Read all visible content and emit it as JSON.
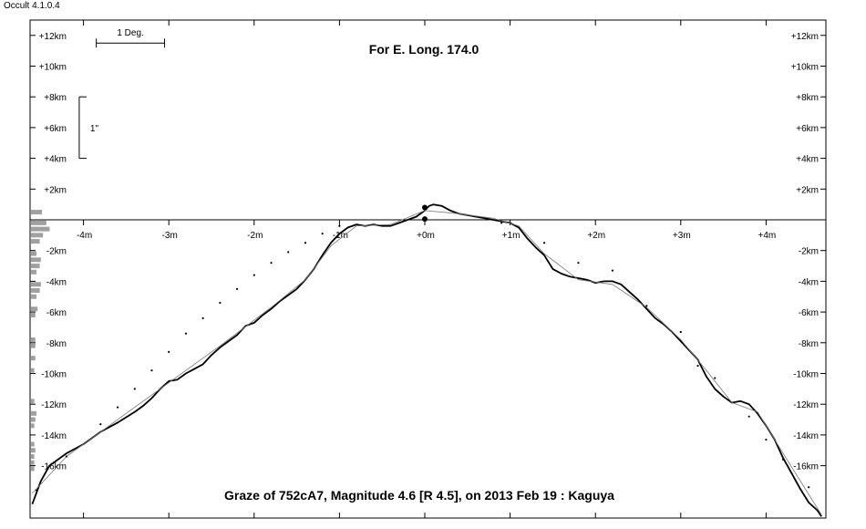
{
  "window": {
    "app_title": "Occult 4.1.0.4"
  },
  "chart_data": {
    "type": "line",
    "title": "Graze of  752cA7,  Magnitude 4.6 [R 4.5],  on 2013 Feb 19  :  Kaguya",
    "subtitle": "For E. Long. 174.0",
    "x_unit": "m",
    "y_unit": "km",
    "xlim": [
      -4.65,
      4.7
    ],
    "ylim": [
      -19.5,
      12.9
    ],
    "x_ticks": [
      -4,
      -3,
      -2,
      -1,
      0,
      1,
      2,
      3,
      4
    ],
    "x_tick_labels": [
      "-4m",
      "-3m",
      "-2m",
      "-1m",
      "+0m",
      "+1m",
      "+2m",
      "+3m",
      "+4m"
    ],
    "y_ticks": [
      12,
      10,
      8,
      6,
      4,
      2,
      -2,
      -4,
      -6,
      -8,
      -10,
      -12,
      -14,
      -16
    ],
    "y_tick_labels": [
      "+12km",
      "+10km",
      "+8km",
      "+6km",
      "+4km",
      "+2km",
      "-2km",
      "-4km",
      "-6km",
      "-8km",
      "-10km",
      "-12km",
      "-14km",
      "-16km"
    ],
    "scale_bar_deg": {
      "label": "1 Deg.",
      "x": [
        -3.85,
        -3.05
      ],
      "y": 11.5
    },
    "scale_bar_arcsec": {
      "label": "1\"",
      "x": -4.05,
      "y": [
        4,
        8
      ]
    },
    "series": [
      {
        "style": "thick",
        "color": "#000000",
        "points": [
          [
            -4.6,
            -18.5
          ],
          [
            -4.5,
            -17.0
          ],
          [
            -4.4,
            -16.0
          ],
          [
            -4.2,
            -15.2
          ],
          [
            -4.0,
            -14.6
          ],
          [
            -3.8,
            -13.8
          ],
          [
            -3.6,
            -13.2
          ],
          [
            -3.4,
            -12.5
          ],
          [
            -3.3,
            -12.1
          ],
          [
            -3.2,
            -11.6
          ],
          [
            -3.1,
            -11.0
          ],
          [
            -3.0,
            -10.5
          ],
          [
            -2.9,
            -10.4
          ],
          [
            -2.8,
            -10.0
          ],
          [
            -2.7,
            -9.7
          ],
          [
            -2.6,
            -9.4
          ],
          [
            -2.5,
            -8.8
          ],
          [
            -2.4,
            -8.3
          ],
          [
            -2.3,
            -7.9
          ],
          [
            -2.2,
            -7.5
          ],
          [
            -2.1,
            -6.9
          ],
          [
            -2.0,
            -6.7
          ],
          [
            -1.9,
            -6.2
          ],
          [
            -1.8,
            -5.8
          ],
          [
            -1.7,
            -5.3
          ],
          [
            -1.6,
            -4.9
          ],
          [
            -1.5,
            -4.5
          ],
          [
            -1.4,
            -3.9
          ],
          [
            -1.3,
            -3.2
          ],
          [
            -1.2,
            -2.3
          ],
          [
            -1.1,
            -1.5
          ],
          [
            -1.0,
            -0.9
          ],
          [
            -0.9,
            -0.5
          ],
          [
            -0.8,
            -0.3
          ],
          [
            -0.7,
            -0.4
          ],
          [
            -0.6,
            -0.3
          ],
          [
            -0.5,
            -0.4
          ],
          [
            -0.4,
            -0.4
          ],
          [
            -0.3,
            -0.2
          ],
          [
            -0.2,
            0.0
          ],
          [
            -0.1,
            0.2
          ],
          [
            0.0,
            0.6
          ],
          [
            0.05,
            0.9
          ],
          [
            0.1,
            1.0
          ],
          [
            0.2,
            0.9
          ],
          [
            0.3,
            0.6
          ],
          [
            0.4,
            0.4
          ],
          [
            0.5,
            0.3
          ],
          [
            0.6,
            0.2
          ],
          [
            0.7,
            0.1
          ],
          [
            0.8,
            0.0
          ],
          [
            0.9,
            -0.1
          ],
          [
            1.0,
            -0.2
          ],
          [
            1.1,
            -0.5
          ],
          [
            1.2,
            -1.2
          ],
          [
            1.3,
            -1.8
          ],
          [
            1.4,
            -2.3
          ],
          [
            1.5,
            -3.2
          ],
          [
            1.6,
            -3.5
          ],
          [
            1.7,
            -3.7
          ],
          [
            1.8,
            -3.8
          ],
          [
            1.9,
            -3.9
          ],
          [
            2.0,
            -4.1
          ],
          [
            2.1,
            -4.0
          ],
          [
            2.2,
            -4.0
          ],
          [
            2.3,
            -4.2
          ],
          [
            2.4,
            -4.7
          ],
          [
            2.5,
            -5.2
          ],
          [
            2.6,
            -5.8
          ],
          [
            2.7,
            -6.4
          ],
          [
            2.8,
            -6.8
          ],
          [
            2.9,
            -7.3
          ],
          [
            3.0,
            -7.9
          ],
          [
            3.1,
            -8.5
          ],
          [
            3.2,
            -9.1
          ],
          [
            3.3,
            -10.2
          ],
          [
            3.4,
            -11.0
          ],
          [
            3.5,
            -11.5
          ],
          [
            3.6,
            -11.9
          ],
          [
            3.7,
            -11.8
          ],
          [
            3.8,
            -12.0
          ],
          [
            3.9,
            -12.6
          ],
          [
            4.0,
            -13.4
          ],
          [
            4.1,
            -14.3
          ],
          [
            4.2,
            -15.5
          ],
          [
            4.3,
            -16.5
          ],
          [
            4.4,
            -17.5
          ],
          [
            4.5,
            -18.4
          ],
          [
            4.6,
            -18.9
          ],
          [
            4.65,
            -19.3
          ]
        ]
      },
      {
        "style": "thin",
        "color": "#777777",
        "points": [
          [
            -4.6,
            -17.8
          ],
          [
            -4.2,
            -15.4
          ],
          [
            -3.6,
            -13.0
          ],
          [
            -3.0,
            -10.6
          ],
          [
            -2.4,
            -8.2
          ],
          [
            -1.8,
            -5.7
          ],
          [
            -1.4,
            -3.9
          ],
          [
            -1.1,
            -1.7
          ],
          [
            -0.8,
            -0.4
          ],
          [
            -0.4,
            -0.3
          ],
          [
            0.0,
            0.6
          ],
          [
            0.4,
            0.4
          ],
          [
            0.8,
            0.1
          ],
          [
            1.1,
            -0.4
          ],
          [
            1.4,
            -2.2
          ],
          [
            1.8,
            -3.9
          ],
          [
            2.2,
            -4.2
          ],
          [
            2.6,
            -5.7
          ],
          [
            3.0,
            -7.8
          ],
          [
            3.3,
            -9.8
          ],
          [
            3.6,
            -11.9
          ],
          [
            3.9,
            -12.5
          ],
          [
            4.2,
            -15.2
          ],
          [
            4.65,
            -19.2
          ]
        ]
      },
      {
        "style": "dots",
        "color": "#000000",
        "points": [
          [
            -4.55,
            -17.6
          ],
          [
            -4.2,
            -15.4
          ],
          [
            -3.8,
            -13.3
          ],
          [
            -3.6,
            -12.2
          ],
          [
            -3.4,
            -11.0
          ],
          [
            -3.2,
            -9.8
          ],
          [
            -3.0,
            -8.6
          ],
          [
            -2.8,
            -7.4
          ],
          [
            -2.6,
            -6.4
          ],
          [
            -2.4,
            -5.4
          ],
          [
            -2.2,
            -4.5
          ],
          [
            -2.0,
            -3.6
          ],
          [
            -1.8,
            -2.8
          ],
          [
            -1.6,
            -2.1
          ],
          [
            -1.4,
            -1.5
          ],
          [
            -1.2,
            -0.9
          ],
          [
            -1.0,
            -0.4
          ],
          [
            0.9,
            -0.2
          ],
          [
            1.4,
            -1.5
          ],
          [
            1.8,
            -2.8
          ],
          [
            2.2,
            -3.3
          ],
          [
            2.6,
            -5.6
          ],
          [
            3.0,
            -7.3
          ],
          [
            3.2,
            -9.5
          ],
          [
            3.4,
            -10.3
          ],
          [
            3.8,
            -12.8
          ],
          [
            4.0,
            -14.3
          ],
          [
            4.2,
            -15.6
          ],
          [
            4.5,
            -17.4
          ]
        ]
      }
    ],
    "markers": [
      [
        0.0,
        0.8
      ],
      [
        0.0,
        0.05
      ]
    ],
    "side_histogram": [
      {
        "y": 0.5,
        "v": 1.0
      },
      {
        "y": -0.2,
        "v": 1.4
      },
      {
        "y": -0.6,
        "v": 1.7
      },
      {
        "y": -1.0,
        "v": 1.1
      },
      {
        "y": -1.4,
        "v": 0.8
      },
      {
        "y": -2.2,
        "v": 0.5
      },
      {
        "y": -2.6,
        "v": 0.9
      },
      {
        "y": -3.0,
        "v": 0.8
      },
      {
        "y": -3.4,
        "v": 0.5
      },
      {
        "y": -4.2,
        "v": 0.9
      },
      {
        "y": -4.6,
        "v": 0.8
      },
      {
        "y": -5.0,
        "v": 0.5
      },
      {
        "y": -5.8,
        "v": 0.6
      },
      {
        "y": -6.2,
        "v": 0.4
      },
      {
        "y": -7.8,
        "v": 0.4
      },
      {
        "y": -8.2,
        "v": 0.4
      },
      {
        "y": -9.0,
        "v": 0.4
      },
      {
        "y": -9.8,
        "v": 0.3
      },
      {
        "y": -11.8,
        "v": 0.3
      },
      {
        "y": -12.6,
        "v": 0.5
      },
      {
        "y": -13.0,
        "v": 0.4
      },
      {
        "y": -13.4,
        "v": 0.3
      },
      {
        "y": -14.6,
        "v": 0.3
      },
      {
        "y": -15.0,
        "v": 0.4
      },
      {
        "y": -15.4,
        "v": 0.3
      },
      {
        "y": -15.8,
        "v": 0.3
      },
      {
        "y": -16.2,
        "v": 0.3
      }
    ]
  }
}
